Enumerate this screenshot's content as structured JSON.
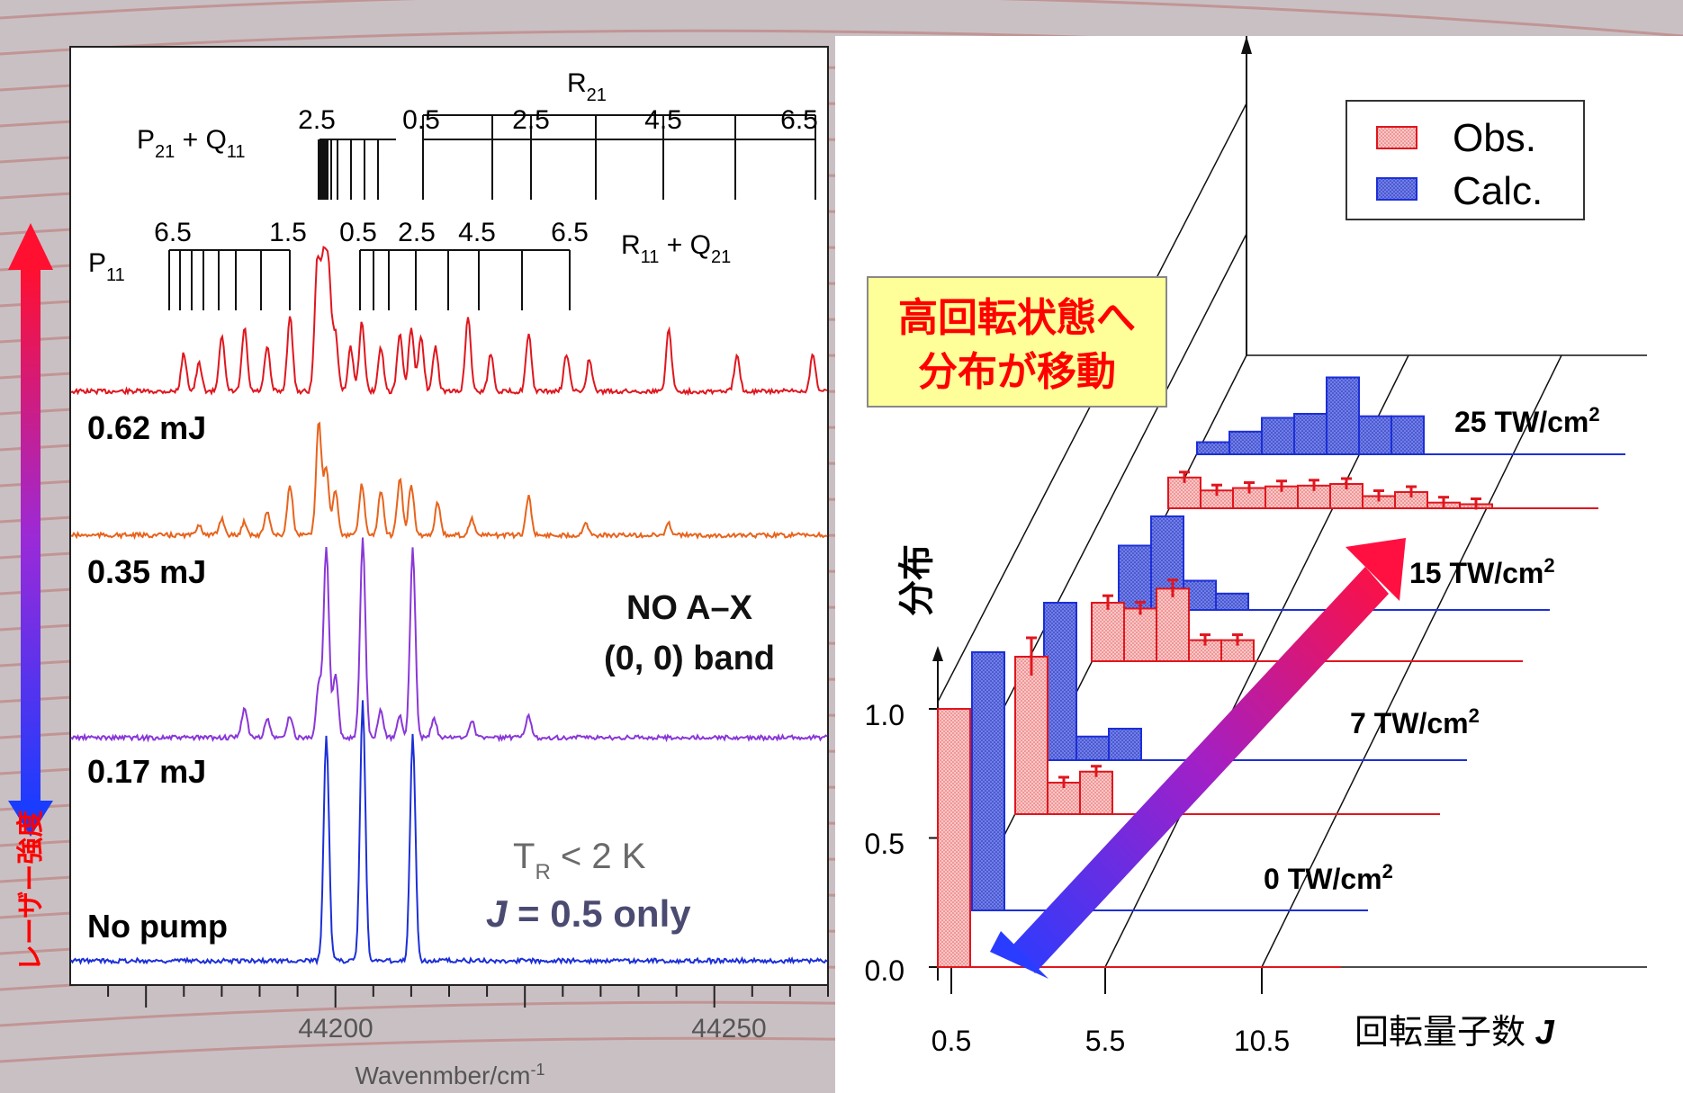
{
  "colors": {
    "background": "#c9c0c4",
    "background_streak": "#b2453c",
    "red": "#e0161e",
    "orange": "#e8631c",
    "purple": "#8a37d8",
    "blue": "#1c2fd8",
    "label_gray": "#4b4b72",
    "note_gray": "#6a6a6a",
    "callout_bg": "#ffff99",
    "callout_text": "#ff0000",
    "obs_fill": "#f9b4b4",
    "calc_fill": "#5c6ee8"
  },
  "side_arrow": {
    "label": "レーザー強度"
  },
  "chart_data": [
    {
      "type": "line",
      "xlabel": "Wavenmber/cm",
      "xlabel_sup": "-1",
      "x_ticks": [
        "44200",
        "44250"
      ],
      "xlim": [
        44165,
        44265
      ],
      "series": [
        {
          "name": "0.62 mJ",
          "color": "#e0161e",
          "peaks": [
            44180,
            44182,
            44185,
            44188,
            44191,
            44194,
            44197.6,
            44198.4,
            44199.1,
            44200,
            44202,
            44203.5,
            44206,
            44208.5,
            44210,
            44211.3,
            44213.2,
            44217.5,
            44220.5,
            44225.5,
            44230.5,
            44233.5,
            44244,
            44253,
            44263
          ],
          "heights": [
            0.3,
            0.22,
            0.45,
            0.5,
            0.35,
            0.6,
            1.0,
            0.95,
            0.9,
            0.45,
            0.35,
            0.55,
            0.35,
            0.45,
            0.5,
            0.45,
            0.35,
            0.6,
            0.3,
            0.45,
            0.3,
            0.25,
            0.5,
            0.3,
            0.3
          ]
        },
        {
          "name": "0.35 mJ",
          "color": "#e8631c",
          "peaks": [
            44182,
            44185,
            44188,
            44191,
            44194,
            44197.8,
            44198.8,
            44200,
            44203.5,
            44206,
            44208.5,
            44210,
            44213.5,
            44218,
            44225.5,
            44233,
            44244
          ],
          "heights": [
            0.1,
            0.15,
            0.12,
            0.22,
            0.45,
            1.0,
            0.6,
            0.4,
            0.45,
            0.4,
            0.5,
            0.45,
            0.3,
            0.15,
            0.35,
            0.12,
            0.1
          ]
        },
        {
          "name": "0.17 mJ",
          "color": "#8a37d8",
          "peaks": [
            44188,
            44191,
            44194,
            44197.8,
            44198.8,
            44200,
            44203.6,
            44206,
            44208.5,
            44210.2,
            44213,
            44218,
            44225.5
          ],
          "heights": [
            0.17,
            0.1,
            0.12,
            0.3,
            1.05,
            0.35,
            1.1,
            0.15,
            0.12,
            1.05,
            0.1,
            0.1,
            0.12
          ]
        },
        {
          "name": "No pump",
          "color": "#1c2fd8",
          "peaks": [
            44198.8,
            44203.6,
            44210.2
          ],
          "heights": [
            1.05,
            1.2,
            1.05
          ]
        }
      ],
      "series_labels": [
        "0.62 mJ",
        "0.35 mJ",
        "0.17 mJ",
        "No pump"
      ],
      "line_branches": [
        {
          "label": "R",
          "label_sub": "21",
          "values": [
            "0.5",
            "2.5",
            "4.5",
            "6.5"
          ]
        },
        {
          "label": "P",
          "label_sub": "21",
          "label_tail": " + Q",
          "label_tail_sub": "11",
          "values": [
            "2.5"
          ]
        },
        {
          "label": "P",
          "label_sub": "11",
          "values": [
            "6.5",
            "1.5"
          ]
        },
        {
          "label": "R",
          "label_sub": "11",
          "label_tail": " + Q",
          "label_tail_sub": "21",
          "values": [
            "0.5",
            "2.5",
            "4.5",
            "6.5"
          ]
        }
      ],
      "annotation": {
        "line1": "NO A–X",
        "line2": "(0, 0) band"
      },
      "temperature": {
        "main": "T",
        "sub": "R",
        "rest": " < 2 K",
        "j_label": "J",
        "j_rest": " = 0.5 only"
      }
    },
    {
      "type": "bar",
      "ylabel": "分布",
      "xlabel": "回転量子数 ",
      "xlabel_italic": "J",
      "x_ticks": [
        "0.5",
        "5.5",
        "10.5"
      ],
      "y_ticks": [
        "0.0",
        "0.5",
        "1.0"
      ],
      "ylim": [
        0,
        1.1
      ],
      "legend": {
        "placement": "top-right",
        "obs": "Obs.",
        "calc": "Calc."
      },
      "callout": {
        "line1": "高回転状態へ",
        "line2": "分布が移動"
      },
      "intensities": [
        {
          "label": "0 TW/cm",
          "sup": "2",
          "obs": [
            1.0
          ],
          "calc": [
            1.0
          ]
        },
        {
          "label": "7 TW/cm",
          "sup": "2",
          "obs": [
            1.0,
            0.2,
            0.27
          ],
          "calc": [
            1.0,
            0.15,
            0.2
          ]
        },
        {
          "label": "15 TW/cm",
          "sup": "2",
          "obs": [
            0.5,
            0.45,
            0.62,
            0.18,
            0.18
          ],
          "calc": [
            0.55,
            0.8,
            0.25,
            0.14
          ]
        },
        {
          "label": "25 TW/cm",
          "sup": "2",
          "obs": [
            0.38,
            0.22,
            0.25,
            0.27,
            0.28,
            0.3,
            0.15,
            0.2,
            0.07,
            0.05
          ],
          "calc": [
            0.15,
            0.28,
            0.45,
            0.5,
            0.95,
            0.47,
            0.47
          ]
        }
      ]
    }
  ]
}
